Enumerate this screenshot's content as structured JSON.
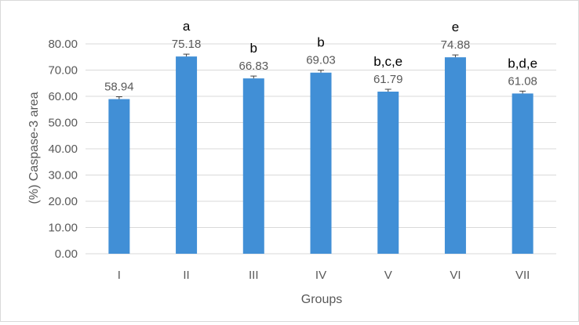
{
  "chart_data": {
    "type": "bar",
    "categories": [
      "I",
      "II",
      "III",
      "IV",
      "V",
      "VI",
      "VII"
    ],
    "values": [
      58.94,
      75.18,
      66.83,
      69.03,
      61.79,
      74.88,
      61.08
    ],
    "data_labels": [
      "58.94",
      "75.18",
      "66.83",
      "69.03",
      "61.79",
      "74.88",
      "61.08"
    ],
    "error_bars": [
      0.9,
      0.9,
      0.9,
      0.9,
      0.9,
      0.9,
      0.9
    ],
    "significance_labels": [
      "",
      "a",
      "b",
      "b",
      "b,c,e",
      "e",
      "b,d,e"
    ],
    "xlabel": "Groups",
    "ylabel": "(%) Caspase-3 area",
    "ylim": [
      0,
      80
    ],
    "yticks": [
      "0.00",
      "10.00",
      "20.00",
      "30.00",
      "40.00",
      "50.00",
      "60.00",
      "70.00",
      "80.00"
    ],
    "grid": true,
    "colors": {
      "bar": "#418fd6",
      "grid": "#d9d9d9",
      "text": "#595959",
      "annotation": "#000000",
      "error_bar": "#404040"
    }
  }
}
